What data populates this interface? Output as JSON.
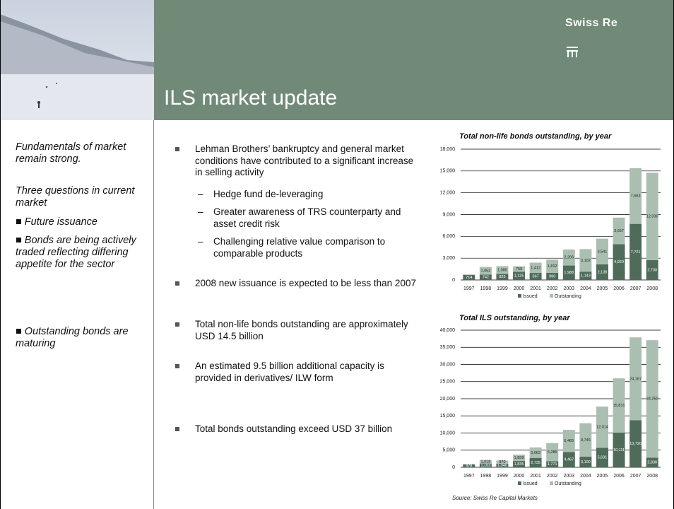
{
  "header": {
    "title": "ILS market update",
    "brand": "Swiss Re"
  },
  "sidebar": {
    "items": [
      "Fundamentals of market remain strong.",
      "Three questions in current market",
      "Future issuance",
      "Bonds are being actively traded reflecting differing appetite for the sector",
      "Outstanding bonds are maturing"
    ]
  },
  "bullets": [
    {
      "text": "Lehman Brothers’ bankruptcy and general market conditions have contributed to a significant increase in selling activity",
      "subitems": [
        "Hedge fund de-leveraging",
        "Greater awareness of TRS counterparty and asset credit risk",
        "Challenging relative value comparison to comparable products"
      ]
    },
    {
      "text": "2008 new issuance is expected to be less than 2007"
    },
    {
      "text": "Total non-life bonds outstanding are approximately USD 14.5 billion"
    },
    {
      "text": "An estimated 9.5 billion additional capacity is provided in derivatives/ ILW form"
    },
    {
      "text": "Total bonds outstanding exceed USD 37 billion"
    }
  ],
  "source": "Source: Swiss Re Capital Markets",
  "chart_data": [
    {
      "type": "stacked-bar",
      "title": "Total non-life bonds outstanding, by year",
      "categories": [
        "1997",
        "1998",
        "1999",
        "2000",
        "2001",
        "2002",
        "2003",
        "2004",
        "2005",
        "2006",
        "2007",
        "2008"
      ],
      "series": [
        {
          "name": "Issued",
          "color": "#4f6b5a",
          "values": [
            714,
            742,
            825,
            1125,
            967,
            990,
            1988,
            1143,
            2138,
            4920,
            7721,
            2730
          ],
          "value_labels": [
            "714",
            "742",
            "825",
            "1,125",
            "967",
            "990",
            "1,988",
            "1,143",
            "2,138",
            "4,920",
            "7,721",
            "2,730"
          ]
        },
        {
          "name": "Outstanding",
          "color": "#aabfb2",
          "values": [
            0,
            1052,
            1080,
            759,
            1412,
            1812,
            2206,
            3102,
            3541,
            3657,
            7663,
            12030
          ],
          "value_labels": [
            null,
            "1,052",
            "1,080",
            "759",
            "1,412",
            "1,812",
            "2,206",
            "3,102",
            "3,541",
            "3,657",
            "7,663",
            "12,030"
          ]
        }
      ],
      "ylim": [
        0,
        18000
      ],
      "yticks": [
        0,
        {
          "value": 3000,
          "label": "3,000"
        },
        {
          "value": 6000,
          "label": "6,000"
        },
        {
          "value": 9000,
          "label": "9,000"
        },
        {
          "value": 12000,
          "label": "12,000"
        },
        {
          "value": 15000,
          "label": "15,000"
        },
        {
          "value": 18000,
          "label": "18,000"
        }
      ],
      "grid": true,
      "legend": "bottom"
    },
    {
      "type": "stacked-bar",
      "title": "Total ILS outstanding, by year",
      "categories": [
        "1997",
        "1998",
        "1999",
        "2000",
        "2001",
        "2002",
        "2003",
        "2004",
        "2005",
        "2006",
        "2007",
        "2008"
      ],
      "series": [
        {
          "name": "Issued",
          "color": "#4f6b5a",
          "values": [
            878,
            1103,
            1040,
            1835,
            2735,
            1771,
            4467,
            3100,
            5691,
            10111,
            13720,
            2830
          ],
          "value_labels": [
            "878",
            "1,103",
            "1,040",
            "1,835",
            "2,735",
            "1,771",
            "4,467",
            "3,100",
            "5,691",
            "10,111",
            "13,720",
            "2,830"
          ]
        },
        {
          "name": "Outstanding",
          "color": "#aabfb2",
          "values": [
            0,
            1018,
            970,
            1859,
            3062,
            5289,
            6465,
            9746,
            12014,
            15831,
            24167,
            34250
          ],
          "value_labels": [
            null,
            "1,018",
            "970",
            "1,859",
            "3,062",
            "5,289",
            "6,465",
            "9,746",
            "12,014",
            "15,831",
            "24,167",
            "34,250"
          ]
        }
      ],
      "ylim": [
        0,
        40000
      ],
      "yticks": [
        0,
        {
          "value": 5000,
          "label": "5,000"
        },
        {
          "value": 10000,
          "label": "10,000"
        },
        {
          "value": 15000,
          "label": "15,000"
        },
        {
          "value": 20000,
          "label": "20,000"
        },
        {
          "value": 25000,
          "label": "25,000"
        },
        {
          "value": 30000,
          "label": "30,000"
        },
        {
          "value": 35000,
          "label": "35,000"
        },
        {
          "value": 40000,
          "label": "40,000"
        }
      ],
      "grid": true,
      "legend": "bottom"
    }
  ]
}
